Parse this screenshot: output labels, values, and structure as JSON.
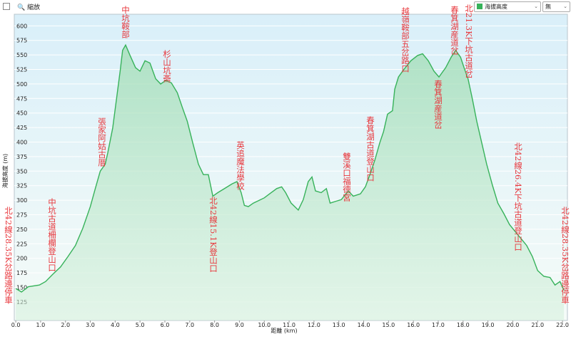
{
  "toolbar": {
    "zoom_label": "縮放",
    "second_select": "無"
  },
  "chart_data": {
    "type": "area",
    "x_label": "距離 (km)",
    "y_label": "海拔高度 (m)",
    "x": [
      0.0,
      0.23,
      0.5,
      0.95,
      1.2,
      1.5,
      1.8,
      2.1,
      2.4,
      2.7,
      3.0,
      3.2,
      3.4,
      3.6,
      3.7,
      3.9,
      4.05,
      4.2,
      4.3,
      4.42,
      4.6,
      4.82,
      5.0,
      5.2,
      5.4,
      5.63,
      5.83,
      6.03,
      6.26,
      6.5,
      6.7,
      6.9,
      7.12,
      7.35,
      7.55,
      7.75,
      7.93,
      8.13,
      8.4,
      8.7,
      8.9,
      9.07,
      9.2,
      9.36,
      9.56,
      9.76,
      10.0,
      10.28,
      10.5,
      10.7,
      10.86,
      11.08,
      11.37,
      11.57,
      11.77,
      11.92,
      12.06,
      12.29,
      12.5,
      12.65,
      12.87,
      13.1,
      13.38,
      13.58,
      13.87,
      14.07,
      14.25,
      14.45,
      14.65,
      14.8,
      14.96,
      15.16,
      15.25,
      15.4,
      15.6,
      15.9,
      16.17,
      16.37,
      16.6,
      16.83,
      17.03,
      17.3,
      17.52,
      17.7,
      17.9,
      18.04,
      18.2,
      18.38,
      18.55,
      18.75,
      18.95,
      19.18,
      19.4,
      19.64,
      19.87,
      20.1,
      20.33,
      20.56,
      20.79,
      21.0,
      21.25,
      21.5,
      21.7,
      21.9,
      22.06
    ],
    "series": [
      {
        "name": "海拔高度",
        "color": "#37b25a",
        "values": [
          148,
          142,
          151,
          154,
          160,
          173,
          185,
          203,
          222,
          252,
          289,
          320,
          350,
          362,
          381,
          424,
          473,
          522,
          558,
          567,
          549,
          528,
          522,
          540,
          536,
          509,
          500,
          506,
          502,
          485,
          460,
          436,
          399,
          362,
          344,
          344,
          307,
          313,
          320,
          328,
          332,
          313,
          291,
          289,
          295,
          299,
          304,
          313,
          320,
          323,
          313,
          295,
          283,
          301,
          332,
          340,
          316,
          313,
          320,
          295,
          298,
          301,
          316,
          307,
          311,
          323,
          344,
          369,
          399,
          418,
          448,
          454,
          491,
          512,
          524,
          540,
          549,
          552,
          540,
          522,
          512,
          528,
          546,
          558,
          546,
          528,
          509,
          473,
          436,
          399,
          362,
          326,
          295,
          277,
          258,
          246,
          234,
          222,
          203,
          179,
          169,
          167,
          154,
          160,
          145
        ]
      }
    ],
    "xlim": [
      -0.06,
      22.2
    ],
    "ylim": [
      93,
      620
    ],
    "xticks": [
      {
        "value": 0,
        "label": "0.0"
      },
      {
        "value": 1,
        "label": "1.0"
      },
      {
        "value": 2,
        "label": "2.0"
      },
      {
        "value": 3,
        "label": "3.0"
      },
      {
        "value": 4,
        "label": "4.0"
      },
      {
        "value": 5,
        "label": "5.0"
      },
      {
        "value": 6,
        "label": "6.0"
      },
      {
        "value": 7,
        "label": "7.0"
      },
      {
        "value": 8,
        "label": "8.0"
      },
      {
        "value": 9,
        "label": "9.0"
      },
      {
        "value": 10,
        "label": "10.0"
      },
      {
        "value": 11,
        "label": "11.0"
      },
      {
        "value": 12,
        "label": "12.0"
      },
      {
        "value": 13,
        "label": "13.0"
      },
      {
        "value": 14,
        "label": "14.0"
      },
      {
        "value": 15,
        "label": "15.0"
      },
      {
        "value": 16,
        "label": "16.0"
      },
      {
        "value": 17,
        "label": "17.0"
      },
      {
        "value": 18,
        "label": "18.0"
      },
      {
        "value": 19,
        "label": "19.0"
      },
      {
        "value": 20,
        "label": "20.0"
      },
      {
        "value": 21,
        "label": "21.0"
      },
      {
        "value": 22,
        "label": "22.0"
      }
    ],
    "yticks": [
      125,
      150,
      175,
      200,
      225,
      250,
      275,
      300,
      325,
      350,
      375,
      400,
      425,
      450,
      475,
      500,
      525,
      550,
      575,
      600
    ],
    "grid": true,
    "annotations": [
      "北42線28.35K岔路邊停車",
      "中坑古道柵欄登山口",
      "張家阿姑古厝",
      "中坑鞍部",
      "杉山坑斋",
      "北42線15.1K登山口",
      "英追魔法學校",
      "雙溪口福德宮",
      "春箕湖古道登山口",
      "越嶺鞍部五岔路口",
      "春箕湖産道岔",
      "北21.3K下坑古道岔",
      "春箕湖産道岔",
      "北42線26.4K下坑古道登山口",
      "北42線28.35K岔路邊停車"
    ]
  }
}
